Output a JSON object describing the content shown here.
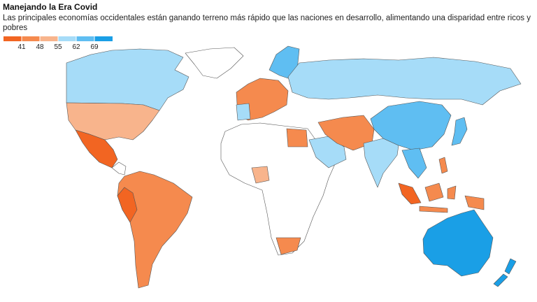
{
  "chart_data": {
    "type": "choropleth",
    "title": "Manejando la Era Covid",
    "subtitle_lines": [
      "Las principales economías occidentales están ganando terreno más rápido que las naciones en desarrollo, alimentando una disparidad entre ricos y",
      "pobres"
    ],
    "legend": {
      "colors": [
        "#f26522",
        "#f58a4e",
        "#f8b48c",
        "#a6dcf8",
        "#5fbef2",
        "#1a9fe6"
      ],
      "ticks": [
        41,
        48,
        55,
        62,
        69
      ]
    }
  }
}
